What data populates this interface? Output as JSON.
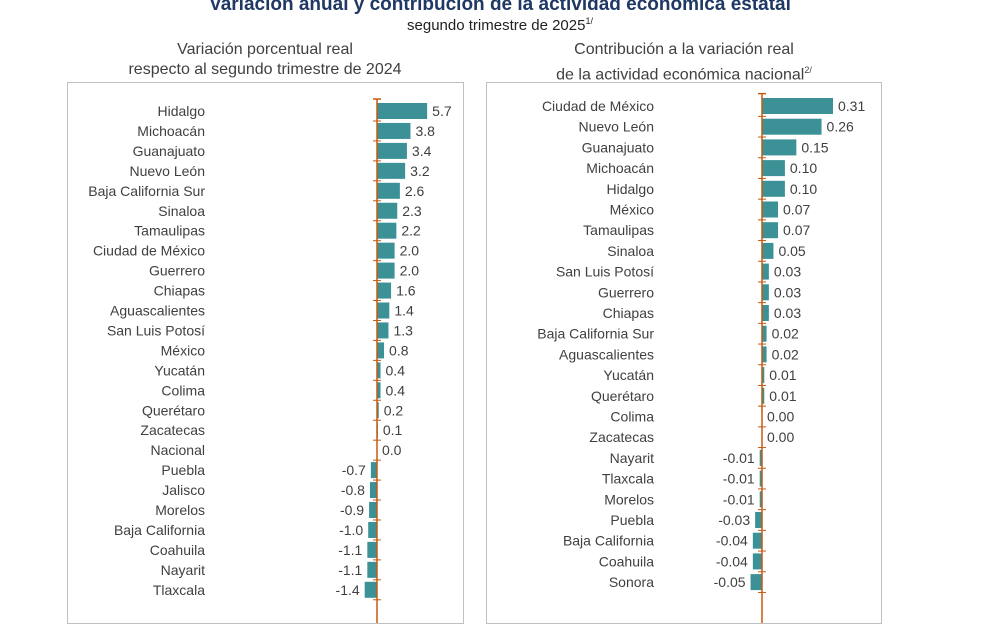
{
  "title": "Variación anual y contribución de la actividad económica estatal",
  "subtitle": "segundo trimestre de 2025",
  "subtitle_note": "1/",
  "chart_data": [
    {
      "type": "bar",
      "orientation": "horizontal",
      "title_line1": "Variación porcentual real",
      "title_line2": "respecto al segundo trimestre de 2024",
      "color": "#3b9196",
      "axis_color": "#c55a11",
      "categories": [
        "Hidalgo",
        "Michoacán",
        "Guanajuato",
        "Nuevo León",
        "Baja California Sur",
        "Sinaloa",
        "Tamaulipas",
        "Ciudad de México",
        "Guerrero",
        "Chiapas",
        "Aguascalientes",
        "San Luis Potosí",
        "México",
        "Yucatán",
        "Colima",
        "Querétaro",
        "Zacatecas",
        "Nacional",
        "Puebla",
        "Jalisco",
        "Morelos",
        "Baja California",
        "Coahuila",
        "Nayarit",
        "Tlaxcala"
      ],
      "values": [
        5.7,
        3.8,
        3.4,
        3.2,
        2.6,
        2.3,
        2.2,
        2.0,
        2.0,
        1.6,
        1.4,
        1.3,
        0.8,
        0.4,
        0.4,
        0.2,
        0.1,
        0.0,
        -0.7,
        -0.8,
        -0.9,
        -1.0,
        -1.1,
        -1.1,
        -1.4
      ],
      "labels": [
        "5.7",
        "3.8",
        "3.4",
        "3.2",
        "2.6",
        "2.3",
        "2.2",
        "2.0",
        "2.0",
        "1.6",
        "1.4",
        "1.3",
        "0.8",
        "0.4",
        "0.4",
        "0.2",
        "0.1",
        "0.0",
        "-0.7",
        "-0.8",
        "-0.9",
        "-1.0",
        "-1.1",
        "-1.1",
        "-1.4"
      ]
    },
    {
      "type": "bar",
      "orientation": "horizontal",
      "title_line1": "Contribución a la variación real",
      "title_line2": "de la actividad económica nacional",
      "title_note": "2/",
      "color": "#3b9196",
      "axis_color": "#c55a11",
      "categories": [
        "Ciudad de México",
        "Nuevo León",
        "Guanajuato",
        "Michoacán",
        "Hidalgo",
        "México",
        "Tamaulipas",
        "Sinaloa",
        "San Luis Potosí",
        "Guerrero",
        "Chiapas",
        "Baja California Sur",
        "Aguascalientes",
        "Yucatán",
        "Querétaro",
        "Colima",
        "Zacatecas",
        "Nayarit",
        "Tlaxcala",
        "Morelos",
        "Puebla",
        "Baja California",
        "Coahuila",
        "Sonora"
      ],
      "values": [
        0.31,
        0.26,
        0.15,
        0.1,
        0.1,
        0.07,
        0.07,
        0.05,
        0.03,
        0.03,
        0.03,
        0.02,
        0.02,
        0.01,
        0.01,
        0.0,
        0.0,
        -0.01,
        -0.01,
        -0.01,
        -0.03,
        -0.04,
        -0.04,
        -0.05
      ],
      "labels": [
        "0.31",
        "0.26",
        "0.15",
        "0.10",
        "0.10",
        "0.07",
        "0.07",
        "0.05",
        "0.03",
        "0.03",
        "0.03",
        "0.02",
        "0.02",
        "0.01",
        "0.01",
        "0.00",
        "0.00",
        "-0.01",
        "-0.01",
        "-0.01",
        "-0.03",
        "-0.04",
        "-0.04",
        "-0.05"
      ]
    }
  ]
}
